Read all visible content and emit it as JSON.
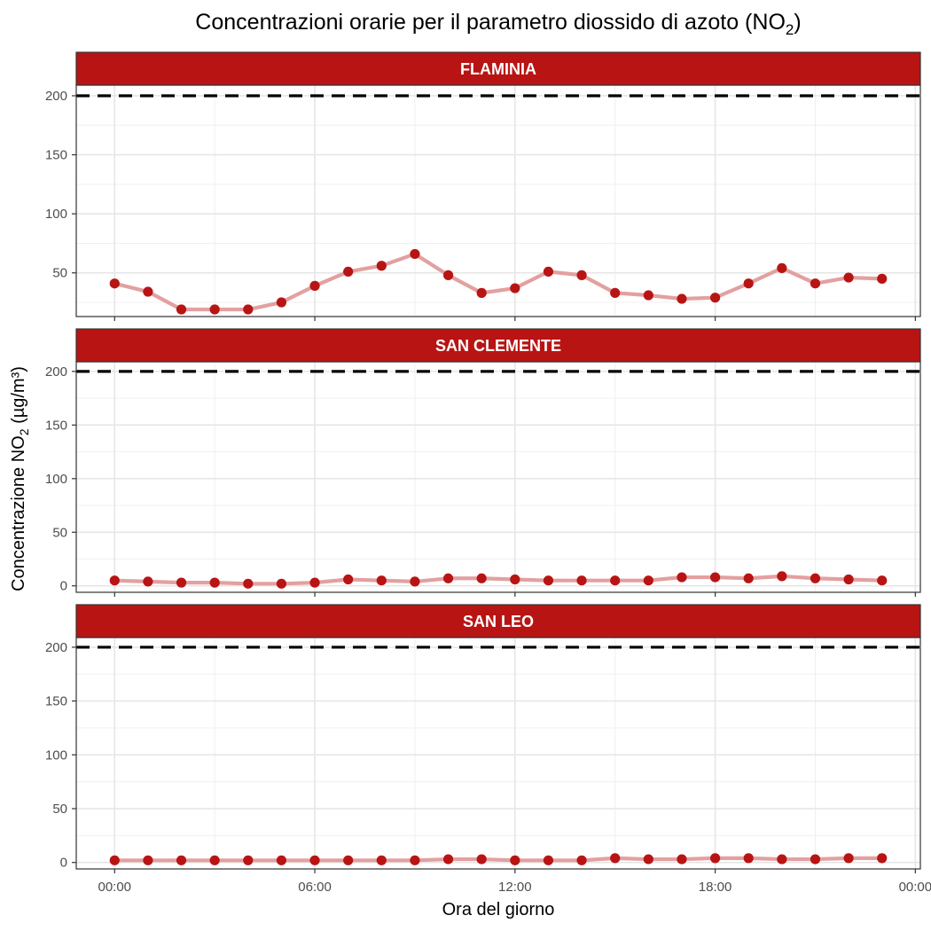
{
  "chart_data": {
    "type": "line",
    "title": "Concentrazioni orarie per il parametro diossido di azoto (NO",
    "title_sub": "2",
    "title_tail": ")",
    "xlabel": "Ora del giorno",
    "ylabel": "Concentrazione NO",
    "ylabel_sub": "2",
    "ylabel_tail": " (µg/m³)",
    "x": [
      "00:00",
      "01:00",
      "02:00",
      "03:00",
      "04:00",
      "05:00",
      "06:00",
      "07:00",
      "08:00",
      "09:00",
      "10:00",
      "11:00",
      "12:00",
      "13:00",
      "14:00",
      "15:00",
      "16:00",
      "17:00",
      "18:00",
      "19:00",
      "20:00",
      "21:00",
      "22:00",
      "23:00"
    ],
    "x_ticks": [
      "00:00",
      "06:00",
      "12:00",
      "18:00",
      "00:00"
    ],
    "x_range_hours": [
      -1.15,
      24.15
    ],
    "y_ticks": [
      0,
      50,
      100,
      150,
      200
    ],
    "reference_line": {
      "value": 200,
      "style": "dashed",
      "color": "#000000"
    },
    "colors": {
      "strip": "#b81414",
      "point": "#b81414",
      "line": "#e3a0a0"
    },
    "grid": true,
    "panels": [
      {
        "name": "FLAMINIA",
        "ylim": [
          13,
          209
        ],
        "values": [
          41,
          34,
          19,
          19,
          19,
          25,
          39,
          51,
          56,
          66,
          48,
          33,
          37,
          51,
          48,
          33,
          31,
          28,
          29,
          41,
          54,
          41,
          46,
          45
        ]
      },
      {
        "name": "SAN CLEMENTE",
        "ylim": [
          -6,
          209
        ],
        "values": [
          5,
          4,
          3,
          3,
          2,
          2,
          3,
          6,
          5,
          4,
          7,
          7,
          6,
          5,
          5,
          5,
          5,
          8,
          8,
          7,
          9,
          7,
          6,
          5
        ]
      },
      {
        "name": "SAN LEO",
        "ylim": [
          -6,
          209
        ],
        "values": [
          2,
          2,
          2,
          2,
          2,
          2,
          2,
          2,
          2,
          2,
          3,
          3,
          2,
          2,
          2,
          4,
          3,
          3,
          4,
          4,
          3,
          3,
          4,
          4
        ]
      }
    ]
  }
}
